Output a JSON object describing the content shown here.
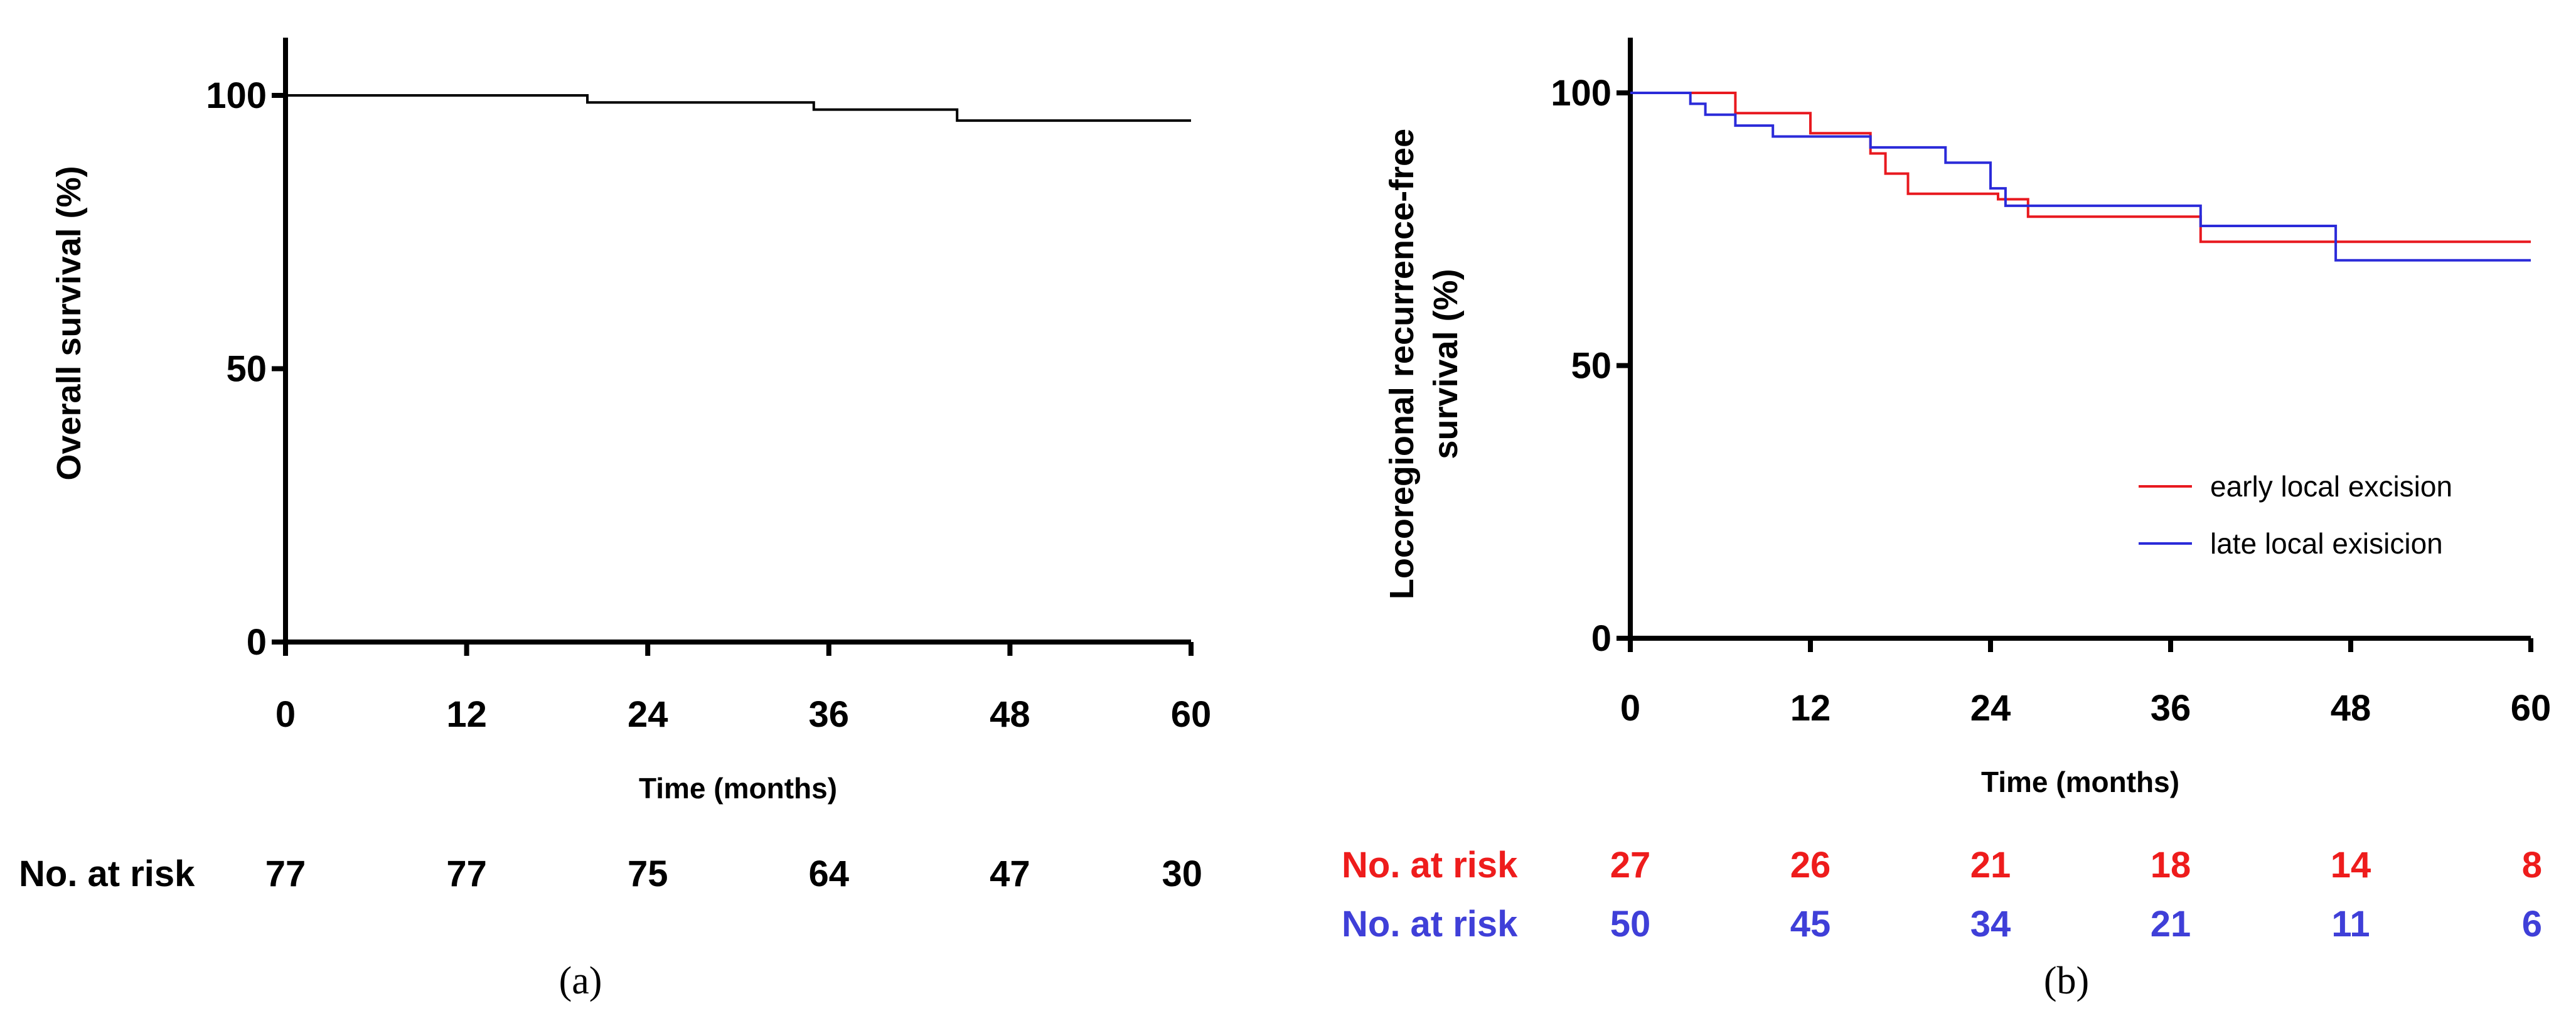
{
  "chart_data": [
    {
      "type": "line",
      "panel_label": "(a)",
      "xlabel": "Time (months)",
      "ylabel": "Overall survival  (%)",
      "xlim": [
        0,
        60
      ],
      "ylim": [
        0,
        110
      ],
      "xticks": [
        0,
        12,
        24,
        36,
        48,
        60
      ],
      "yticks": [
        0,
        50,
        100
      ],
      "series": [
        {
          "name": "Overall survival",
          "color": "#000000",
          "step": true,
          "points": [
            [
              0,
              100
            ],
            [
              20,
              100
            ],
            [
              20,
              98.7
            ],
            [
              35,
              98.7
            ],
            [
              35,
              97.4
            ],
            [
              44.5,
              97.4
            ],
            [
              44.5,
              95.4
            ],
            [
              60,
              95.4
            ]
          ]
        }
      ],
      "risk_table": [
        {
          "label": "No. at risk",
          "color": "#000000",
          "values": [
            77,
            77,
            75,
            64,
            47,
            30
          ]
        }
      ]
    },
    {
      "type": "line",
      "panel_label": "(b)",
      "xlabel": "Time (months)",
      "ylabel_lines": [
        "Locoregional recurrence-free",
        "survival (%)"
      ],
      "xlim": [
        0,
        60
      ],
      "ylim": [
        0,
        110
      ],
      "xticks": [
        0,
        12,
        24,
        36,
        48,
        60
      ],
      "yticks": [
        0,
        50,
        100
      ],
      "legend_position": "right",
      "series": [
        {
          "name": "early local excision",
          "color": "#e8191f",
          "step": true,
          "points": [
            [
              0,
              100
            ],
            [
              7,
              100
            ],
            [
              7,
              96.3
            ],
            [
              12,
              96.3
            ],
            [
              12,
              92.6
            ],
            [
              16,
              92.6
            ],
            [
              16,
              88.9
            ],
            [
              17,
              88.9
            ],
            [
              17,
              85.2
            ],
            [
              18.5,
              85.2
            ],
            [
              18.5,
              81.5
            ],
            [
              24.5,
              81.5
            ],
            [
              24.5,
              80.5
            ],
            [
              26.5,
              80.5
            ],
            [
              26.5,
              77.3
            ],
            [
              38,
              77.3
            ],
            [
              38,
              72.7
            ],
            [
              60,
              72.7
            ]
          ]
        },
        {
          "name": "late local exisicion",
          "color": "#2b2bd9",
          "step": true,
          "points": [
            [
              0,
              100
            ],
            [
              4,
              100
            ],
            [
              4,
              98
            ],
            [
              5,
              98
            ],
            [
              5,
              96
            ],
            [
              7,
              96
            ],
            [
              7,
              94
            ],
            [
              9.5,
              94
            ],
            [
              9.5,
              92
            ],
            [
              16,
              92
            ],
            [
              16,
              90
            ],
            [
              21,
              90
            ],
            [
              21,
              87.2
            ],
            [
              24,
              87.2
            ],
            [
              24,
              82.5
            ],
            [
              25,
              82.5
            ],
            [
              25,
              79.3
            ],
            [
              38,
              79.3
            ],
            [
              38,
              75.6
            ],
            [
              47,
              75.6
            ],
            [
              47,
              69.3
            ],
            [
              60,
              69.3
            ]
          ]
        }
      ],
      "risk_table": [
        {
          "label": "No. at risk",
          "color": "#ee1c1c",
          "values": [
            27,
            26,
            21,
            18,
            14,
            8
          ]
        },
        {
          "label": "No. at risk",
          "color": "#3f3fd8",
          "values": [
            50,
            45,
            34,
            21,
            11,
            6
          ]
        }
      ]
    }
  ]
}
